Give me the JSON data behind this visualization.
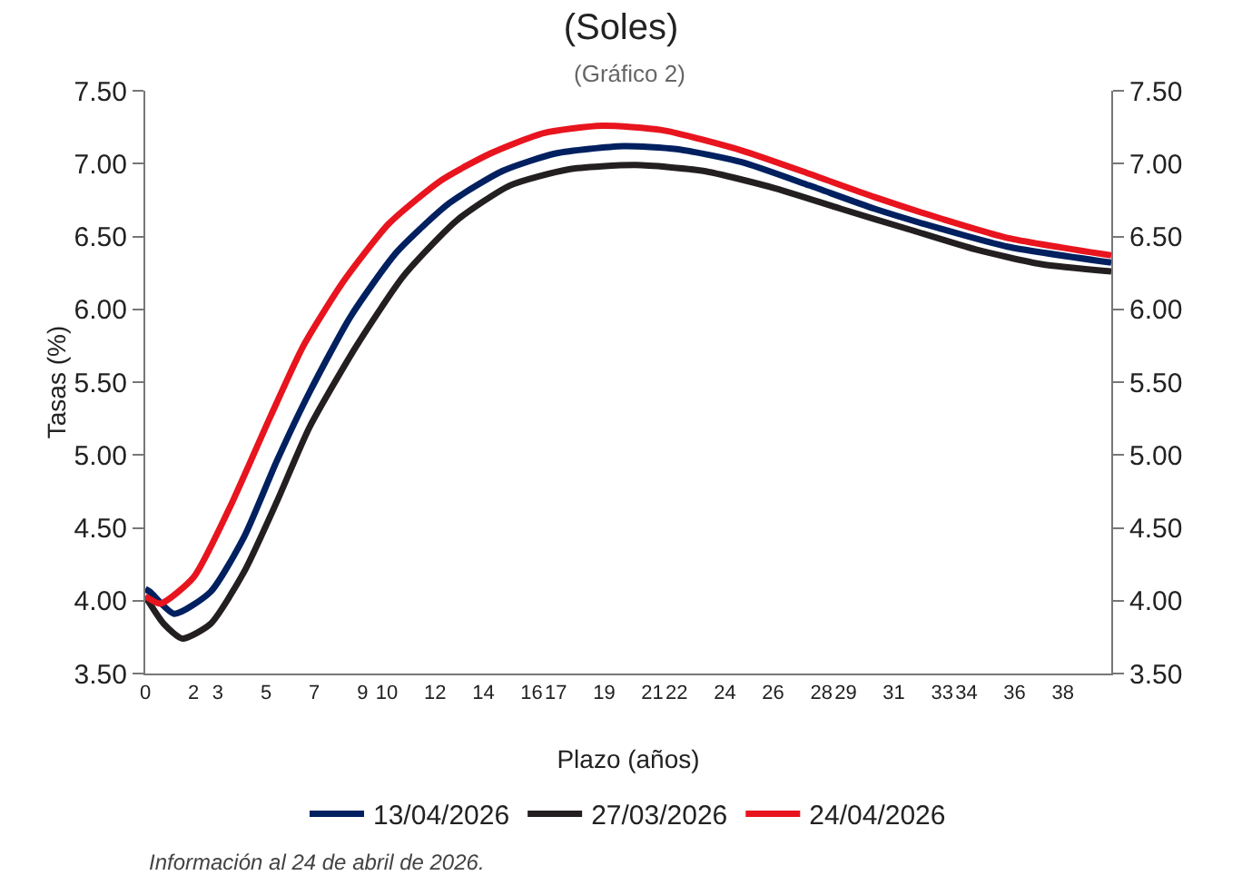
{
  "chart_data": {
    "type": "line",
    "title": "(Soles)",
    "subtitle": "(Gráfico 2)",
    "xlabel": "Plazo (años)",
    "ylabel": "Tasas (%)",
    "xlim": [
      0,
      40
    ],
    "xticks": [
      0,
      2,
      3,
      5,
      7,
      9,
      10,
      12,
      14,
      16,
      17,
      19,
      21,
      22,
      24,
      26,
      28,
      29,
      31,
      33,
      34,
      36,
      38
    ],
    "ylim": [
      3.5,
      7.5
    ],
    "yticks": [
      {
        "value": 3.5,
        "label": "3.50"
      },
      {
        "value": 4,
        "label": "4.00"
      },
      {
        "value": 4.5,
        "label": "4.50"
      },
      {
        "value": 5,
        "label": "5.00"
      },
      {
        "value": 5.5,
        "label": "5.50"
      },
      {
        "value": 6,
        "label": "6.00"
      },
      {
        "value": 6.5,
        "label": "6.50"
      },
      {
        "value": 7,
        "label": "7.00"
      },
      {
        "value": 7.5,
        "label": "7.50"
      }
    ],
    "y2lim": [
      3.5,
      7.5
    ],
    "y2ticks": [
      {
        "value": 3.5,
        "label": "3.50"
      },
      {
        "value": 4,
        "label": "4.00"
      },
      {
        "value": 4.5,
        "label": "4.50"
      },
      {
        "value": 5,
        "label": "5.00"
      },
      {
        "value": 5.5,
        "label": "5.50"
      },
      {
        "value": 6,
        "label": "6.00"
      },
      {
        "value": 6.5,
        "label": "6.50"
      },
      {
        "value": 7,
        "label": "7.00"
      },
      {
        "value": 7.5,
        "label": "7.50"
      }
    ],
    "grid": false,
    "legend": "bottom",
    "marker": "none",
    "line_style": "solid",
    "series": [
      {
        "name": "13/04/2026",
        "color": "#002060",
        "x": [
          0,
          0.2,
          1.2,
          2.7,
          4.1,
          5.45,
          6.8,
          8.5,
          10.4,
          12.6,
          14.8,
          17,
          19.8,
          22,
          24.7,
          27.5,
          30.2,
          33,
          35.7,
          40
        ],
        "values": [
          4.08,
          4.06,
          3.91,
          4.06,
          4.44,
          4.96,
          5.43,
          5.95,
          6.39,
          6.73,
          6.95,
          7.07,
          7.12,
          7.1,
          7.01,
          6.85,
          6.69,
          6.55,
          6.43,
          6.32
        ]
      },
      {
        "name": "27/03/2026",
        "color": "#231f20",
        "x": [
          0,
          0.77,
          1.54,
          2.7,
          4.1,
          5.45,
          6.8,
          8.75,
          10.7,
          12.9,
          15.1,
          17.5,
          20.3,
          23.1,
          26.1,
          28.8,
          31.6,
          34.4,
          37.1,
          40
        ],
        "values": [
          4.03,
          3.84,
          3.74,
          3.84,
          4.2,
          4.68,
          5.19,
          5.75,
          6.23,
          6.61,
          6.85,
          6.96,
          6.99,
          6.95,
          6.83,
          6.69,
          6.55,
          6.41,
          6.31,
          6.26
        ]
      },
      {
        "name": "24/04/2026",
        "color": "#e8141e",
        "x": [
          0,
          0.63,
          2,
          3.5,
          5.2,
          6.55,
          8.2,
          10.1,
          12.3,
          14.3,
          16.5,
          18.9,
          21.4,
          24.7,
          27.5,
          30.2,
          33,
          35.7,
          40
        ],
        "values": [
          4.03,
          3.98,
          4.16,
          4.64,
          5.27,
          5.75,
          6.19,
          6.59,
          6.89,
          7.07,
          7.21,
          7.26,
          7.23,
          7.09,
          6.93,
          6.77,
          6.62,
          6.49,
          6.37
        ]
      }
    ],
    "annotations": [
      "Información al 24 de abril de 2026."
    ]
  }
}
